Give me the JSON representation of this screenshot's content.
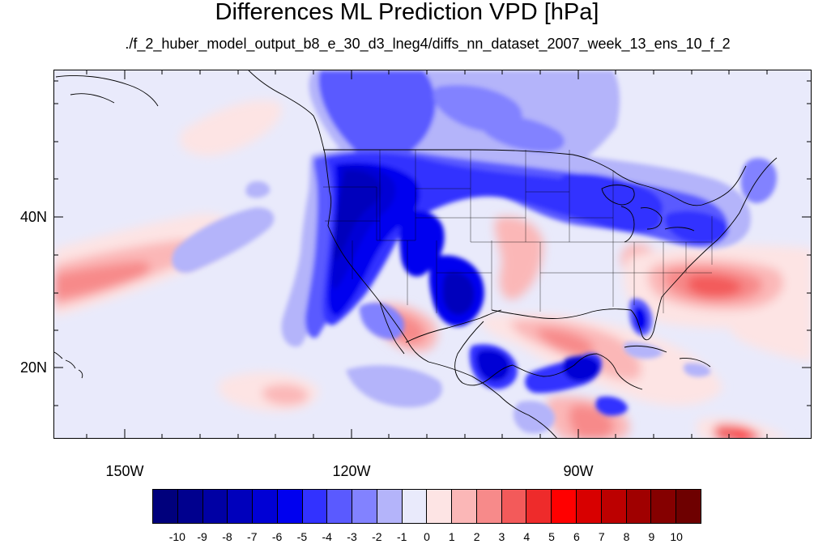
{
  "title": "Differences ML Prediction VPD [hPa]",
  "subtitle": "./f_2_huber_model_output_b8_e_30_d3_lneg4/diffs_nn_dataset_2007_week_13_ens_10_f_2",
  "map": {
    "projection": "cylindrical-equidistant",
    "lon_range": [
      -160,
      -60
    ],
    "lat_range": [
      10,
      59
    ],
    "features": [
      "coastlines",
      "us-state-boundaries",
      "national-boundaries"
    ],
    "field": "VPD prediction difference",
    "dominant_patterns": [
      {
        "region": "western United States and northern Rockies",
        "sign": "negative",
        "magnitude": -8
      },
      {
        "region": "Pacific Northwest to Great Lakes band",
        "sign": "negative",
        "magnitude": -6
      },
      {
        "region": "Mexico Pacific coast and southern Mexico",
        "sign": "negative",
        "magnitude": -7
      },
      {
        "region": "Florida peninsula",
        "sign": "negative",
        "magnitude": -4
      },
      {
        "region": "Atlantic east of the Carolinas",
        "sign": "positive",
        "magnitude": 3
      },
      {
        "region": "central Pacific west of Baja",
        "sign": "positive",
        "magnitude": 2
      },
      {
        "region": "Caribbean and Central America",
        "sign": "positive",
        "magnitude": 3
      }
    ]
  },
  "axes": {
    "lat_ticks": [
      {
        "value": 20,
        "label": "20N"
      },
      {
        "value": 40,
        "label": "40N"
      }
    ],
    "lon_ticks": [
      {
        "value": -150,
        "label": "150W"
      },
      {
        "value": -120,
        "label": "120W"
      },
      {
        "value": -90,
        "label": "90W"
      }
    ]
  },
  "colorbar": {
    "labels": [
      "-10",
      "-9",
      "-8",
      "-7",
      "-6",
      "-5",
      "-4",
      "-3",
      "-2",
      "-1",
      "0",
      "1",
      "2",
      "3",
      "4",
      "5",
      "6",
      "7",
      "8",
      "9",
      "10"
    ],
    "colors": [
      "#00007c",
      "#00008e",
      "#0000a4",
      "#0000bc",
      "#0000d5",
      "#0000ef",
      "#3232ff",
      "#5a5aff",
      "#8282ff",
      "#b4b4fa",
      "#e9eafb",
      "#fde4e4",
      "#fbb7b7",
      "#f78a8a",
      "#f35a5a",
      "#ee2b2b",
      "#ff0000",
      "#d80000",
      "#bc0000",
      "#a00000",
      "#850000",
      "#6e0000"
    ]
  }
}
